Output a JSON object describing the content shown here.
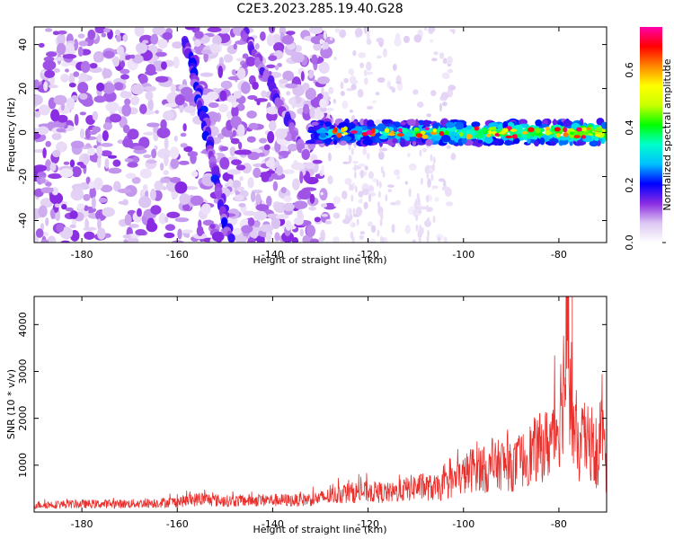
{
  "chart_data": [
    {
      "type": "heatmap",
      "title": "C2E3.2023.285.19.40.G28",
      "xlabel": "Height of straight line (km)",
      "ylabel": "Frequency (Hz)",
      "xlim": [
        -190,
        -70
      ],
      "ylim": [
        -50,
        48
      ],
      "xticks": [
        "-180",
        "-160",
        "-140",
        "-120",
        "-100",
        "-80"
      ],
      "yticks": [
        "40",
        "20",
        "0",
        "-20",
        "-40"
      ],
      "colorbar": {
        "label": "Normalized spectral amplitude",
        "range": [
          0.0,
          0.75
        ],
        "ticks": [
          "0.0",
          "0.2",
          "0.4",
          "0.6"
        ],
        "colors": [
          "#ffffff",
          "#dcc6f2",
          "#8a2be2",
          "#0000ff",
          "#00bfff",
          "#00ffcc",
          "#00ff00",
          "#c8ff00",
          "#ffff00",
          "#ff8800",
          "#ff0000",
          "#ff00aa"
        ]
      },
      "features": {
        "horizontal_band": {
          "frequency_hz": 0,
          "from_km": -132,
          "to_km": -70,
          "peak_amplitude": 0.75
        },
        "diagonal_streak_1": {
          "from": [
            -158,
            42
          ],
          "to": [
            -149,
            -48
          ]
        },
        "diagonal_streak_2": {
          "from": [
            -146,
            46
          ],
          "to": [
            -133,
            -10
          ]
        },
        "background": "scattered low-amplitude noise for heights below -130 km"
      }
    },
    {
      "type": "line",
      "xlabel": "Height of straight line (km)",
      "ylabel": "SNR (10 * v/v)",
      "xlim": [
        -190,
        -70
      ],
      "ylim": [
        0,
        4600
      ],
      "xticks": [
        "-180",
        "-160",
        "-140",
        "-120",
        "-100",
        "-80"
      ],
      "yticks": [
        "1000",
        "2000",
        "3000",
        "4000"
      ],
      "color": "#e8302d",
      "x": [
        -190,
        -185,
        -180,
        -175,
        -170,
        -165,
        -160,
        -155,
        -150,
        -145,
        -140,
        -135,
        -130,
        -125,
        -120,
        -115,
        -110,
        -105,
        -100,
        -97,
        -95,
        -92,
        -90,
        -87,
        -85,
        -82,
        -80,
        -78,
        -77,
        -76,
        -75,
        -73,
        -72,
        -71,
        -70
      ],
      "y": [
        200,
        210,
        220,
        220,
        230,
        250,
        280,
        360,
        300,
        320,
        330,
        320,
        380,
        520,
        560,
        520,
        700,
        650,
        1000,
        1300,
        1100,
        1350,
        1200,
        1500,
        1700,
        1900,
        2500,
        4700,
        2300,
        1600,
        2000,
        1800,
        1200,
        2700,
        900
      ]
    }
  ]
}
